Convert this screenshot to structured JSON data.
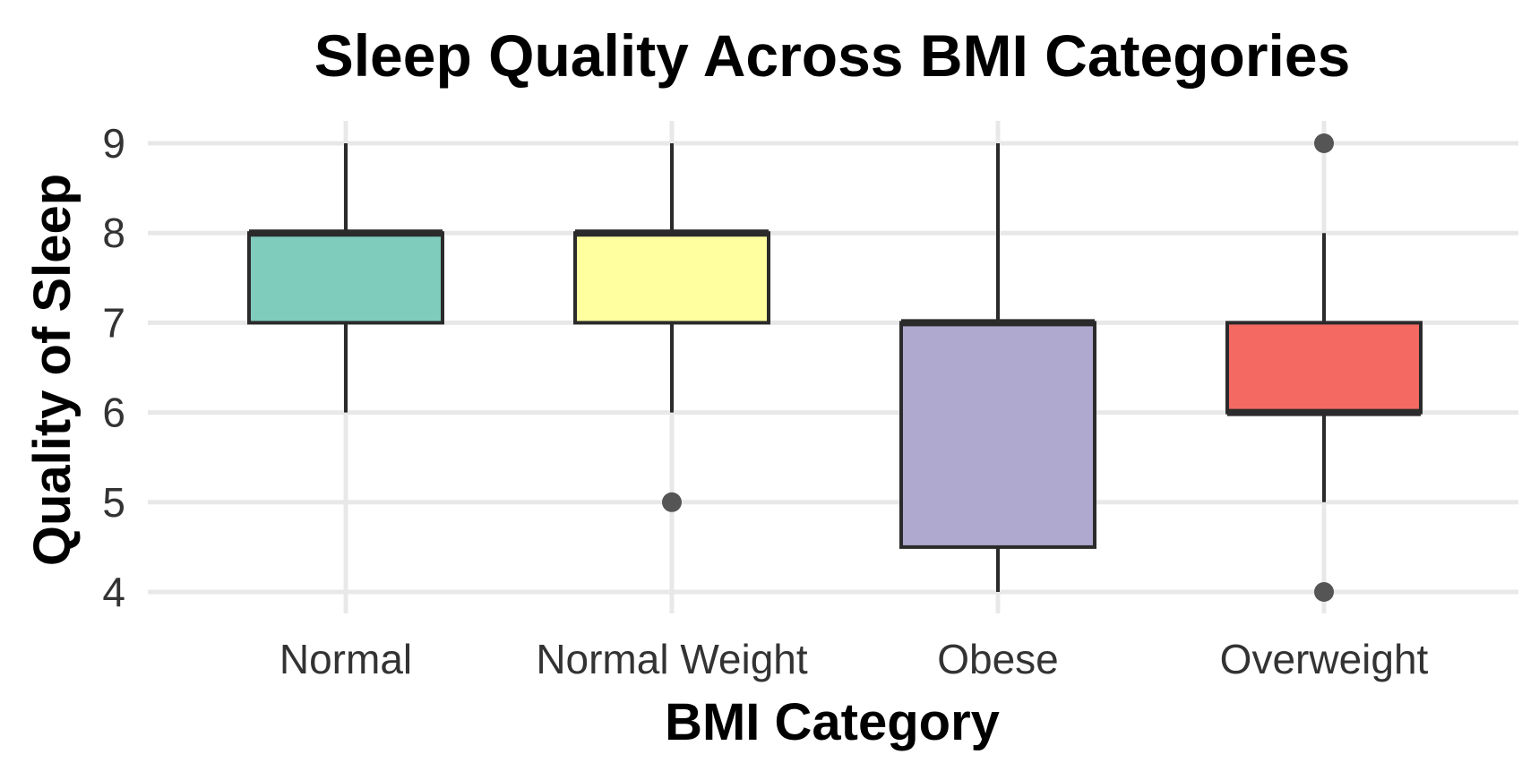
{
  "chart_data": {
    "type": "box",
    "title": "Sleep Quality Across BMI Categories",
    "xlabel": "BMI Category",
    "ylabel": "Quality of Sleep",
    "categories": [
      "Normal",
      "Normal Weight",
      "Obese",
      "Overweight"
    ],
    "yticks": [
      "4",
      "5",
      "6",
      "7",
      "8",
      "9"
    ],
    "ylim": [
      4,
      9
    ],
    "grid": true,
    "legend": "none",
    "boxes": [
      {
        "category": "Normal",
        "min": 6,
        "q1": 7,
        "median": 8,
        "q3": 8,
        "max": 9,
        "outliers": [],
        "color": "#7fcbbc"
      },
      {
        "category": "Normal Weight",
        "min": 6,
        "q1": 7,
        "median": 8,
        "q3": 8,
        "max": 9,
        "outliers": [
          5
        ],
        "color": "#ffffa0"
      },
      {
        "category": "Obese",
        "min": 4,
        "q1": 4.5,
        "median": 7,
        "q3": 7,
        "max": 9,
        "outliers": [],
        "color": "#b0a9cf"
      },
      {
        "category": "Overweight",
        "min": 5,
        "q1": 6,
        "median": 6,
        "q3": 7,
        "max": 8,
        "outliers": [
          4,
          9
        ],
        "color": "#f46a62"
      }
    ],
    "outlier_color": "#555555",
    "box_stroke": "#2b2b2b"
  }
}
